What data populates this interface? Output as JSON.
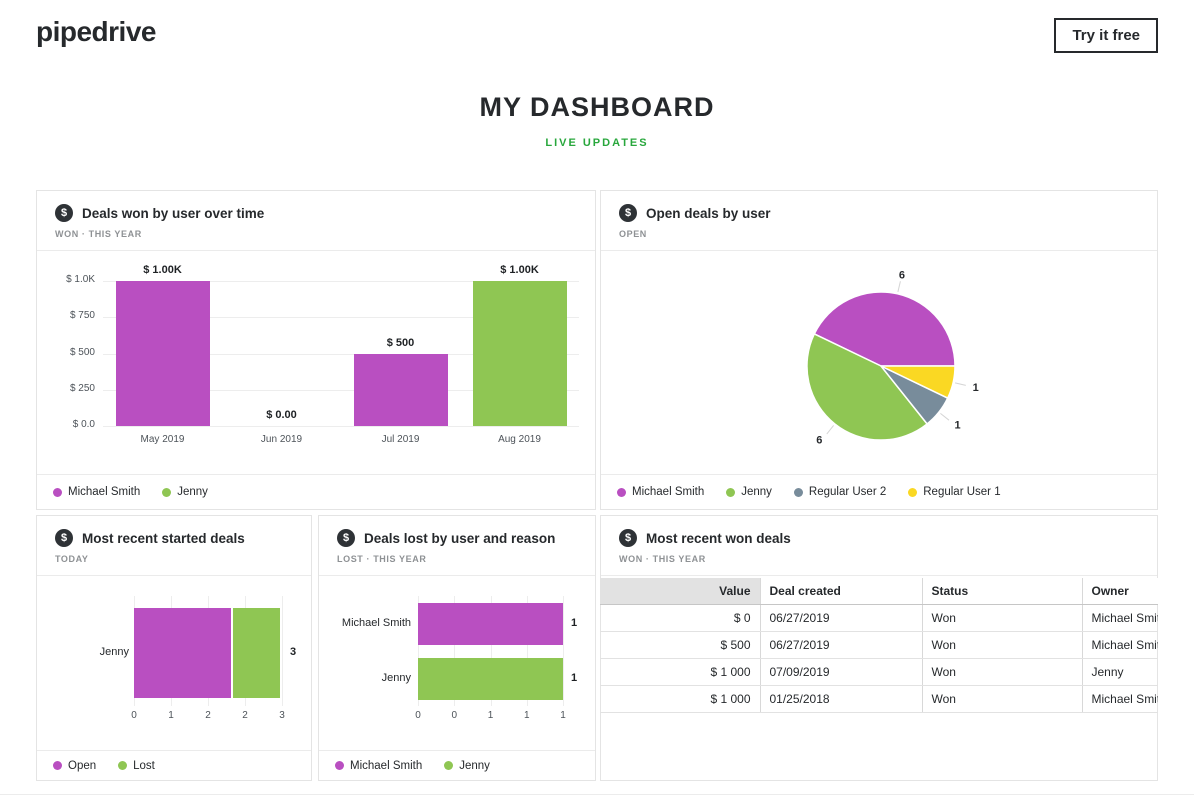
{
  "colors": {
    "purple": "#b94fc1",
    "green": "#8fc653",
    "yellow": "#fad823",
    "slate": "#788c9b",
    "brand_green": "#28a73c",
    "text_dark": "#26292c"
  },
  "icons": {
    "dollar": "$"
  },
  "header": {
    "logo": "pipedrive",
    "cta_label": "Try it free"
  },
  "page": {
    "title": "MY DASHBOARD",
    "subtitle": "LIVE UPDATES"
  },
  "cards": {
    "deals_won": {
      "title": "Deals won by user over time",
      "filter": "WON · THIS YEAR"
    },
    "open_deals": {
      "title": "Open deals by user",
      "filter": "OPEN"
    },
    "started_deals": {
      "title": "Most recent started deals",
      "filter": "TODAY"
    },
    "lost_deals": {
      "title": "Deals lost by user and reason",
      "filter": "LOST · THIS YEAR"
    },
    "won_deals": {
      "title": "Most recent won deals",
      "filter": "WON · THIS YEAR"
    }
  },
  "chart_data": [
    {
      "id": "deals-won-by-user-over-time",
      "type": "bar",
      "title": "Deals won by user over time",
      "categories": [
        "May 2019",
        "Jun 2019",
        "Jul 2019",
        "Aug 2019"
      ],
      "values": [
        1000,
        0,
        500,
        1000
      ],
      "bar_colors": [
        "#b94fc1",
        null,
        "#b94fc1",
        "#8fc653"
      ],
      "value_labels": [
        "$ 1.00K",
        "$ 0.00",
        "$ 500",
        "$ 1.00K"
      ],
      "y_ticks": [
        {
          "label": "$ 1.0K",
          "value": 1000
        },
        {
          "label": "$ 750",
          "value": 750
        },
        {
          "label": "$ 500",
          "value": 500
        },
        {
          "label": "$ 250",
          "value": 250
        },
        {
          "label": "$ 0.0",
          "value": 0
        }
      ],
      "ylim": [
        0,
        1000
      ],
      "grid": true,
      "legend_position": "bottom",
      "legend": [
        {
          "label": "Michael Smith",
          "color": "#b94fc1"
        },
        {
          "label": "Jenny",
          "color": "#8fc653"
        }
      ]
    },
    {
      "id": "open-deals-by-user",
      "type": "pie",
      "title": "Open deals by user",
      "slices": [
        {
          "label": "Michael Smith",
          "value": 6,
          "color": "#b94fc1"
        },
        {
          "label": "Jenny",
          "value": 6,
          "color": "#8fc653"
        },
        {
          "label": "Regular User 2",
          "value": 1,
          "color": "#788c9b"
        },
        {
          "label": "Regular User 1",
          "value": 1,
          "color": "#fad823"
        }
      ],
      "start_angle_deg": 0,
      "direction": "ccw",
      "legend_position": "bottom",
      "legend": [
        {
          "label": "Michael Smith",
          "color": "#b94fc1"
        },
        {
          "label": "Jenny",
          "color": "#8fc653"
        },
        {
          "label": "Regular User 2",
          "color": "#788c9b"
        },
        {
          "label": "Regular User 1",
          "color": "#fad823"
        }
      ]
    },
    {
      "id": "most-recent-started-deals",
      "type": "stacked-hbar",
      "title": "Most recent started deals",
      "rows": [
        {
          "category": "Jenny",
          "segments": [
            {
              "label": "Open",
              "value": 2,
              "color": "#b94fc1"
            },
            {
              "label": "Lost",
              "value": 1,
              "color": "#8fc653"
            }
          ],
          "total_label": "3"
        }
      ],
      "xlim": [
        0,
        3
      ],
      "x_ticks": [
        "0",
        "1",
        "2",
        "2",
        "3"
      ],
      "grid": true,
      "legend_position": "bottom",
      "legend": [
        {
          "label": "Open",
          "color": "#b94fc1"
        },
        {
          "label": "Lost",
          "color": "#8fc653"
        }
      ]
    },
    {
      "id": "deals-lost-by-user-and-reason",
      "type": "hbar",
      "title": "Deals lost by user and reason",
      "rows": [
        {
          "category": "Michael Smith",
          "value": 1,
          "color": "#b94fc1",
          "value_label": "1"
        },
        {
          "category": "Jenny",
          "value": 1,
          "color": "#8fc653",
          "value_label": "1"
        }
      ],
      "xlim": [
        0,
        1
      ],
      "x_ticks": [
        "0",
        "0",
        "1",
        "1",
        "1"
      ],
      "grid": true,
      "legend_position": "bottom",
      "legend": [
        {
          "label": "Michael Smith",
          "color": "#b94fc1"
        },
        {
          "label": "Jenny",
          "color": "#8fc653"
        }
      ]
    },
    {
      "id": "most-recent-won-deals",
      "type": "table",
      "title": "Most recent won deals",
      "columns": [
        {
          "label": "Value",
          "align": "right",
          "shaded": true
        },
        {
          "label": "Deal created",
          "align": "left",
          "shaded": false
        },
        {
          "label": "Status",
          "align": "left",
          "shaded": false
        },
        {
          "label": "Owner",
          "align": "left",
          "shaded": false
        }
      ],
      "rows": [
        [
          "$ 0",
          "06/27/2019",
          "Won",
          "Michael Smith"
        ],
        [
          "$ 500",
          "06/27/2019",
          "Won",
          "Michael Smith"
        ],
        [
          "$ 1 000",
          "07/09/2019",
          "Won",
          "Jenny"
        ],
        [
          "$ 1 000",
          "01/25/2018",
          "Won",
          "Michael Smith"
        ]
      ]
    }
  ]
}
